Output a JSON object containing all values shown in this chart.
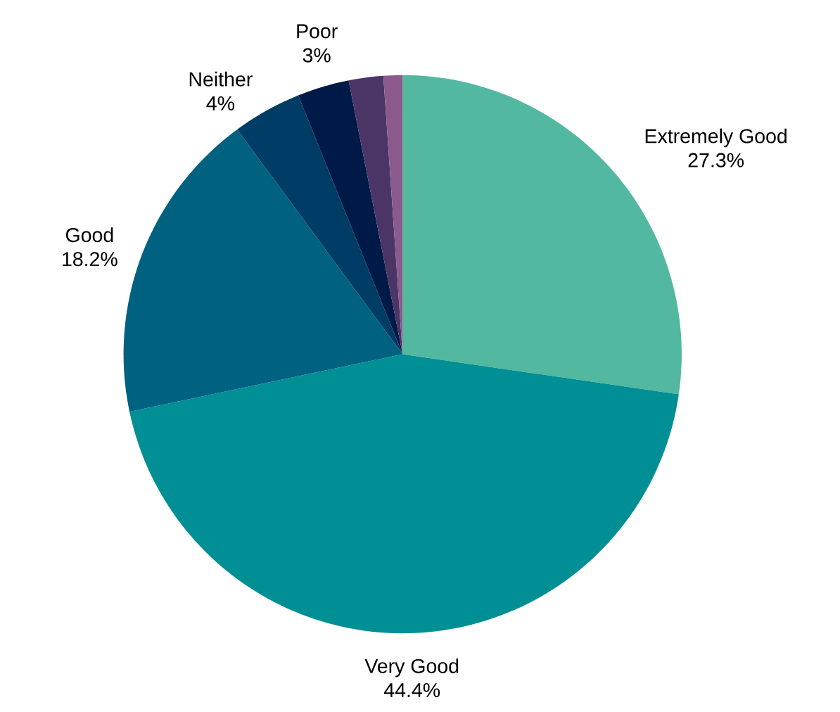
{
  "chart_data": {
    "type": "pie",
    "categories": [
      "Extremely Good",
      "Very Good",
      "Good",
      "Neither",
      "Poor",
      null,
      null
    ],
    "values": [
      27.3,
      44.4,
      18.2,
      4,
      3,
      2,
      1.1
    ],
    "value_labels": [
      "27.3%",
      "44.4%",
      "18.2%",
      "4%",
      "3%",
      null,
      null
    ],
    "colors": [
      "#52b8a0",
      "#008f94",
      "#006180",
      "#003d66",
      "#001a47",
      "#4a3566",
      "#8a5a8c"
    ]
  }
}
